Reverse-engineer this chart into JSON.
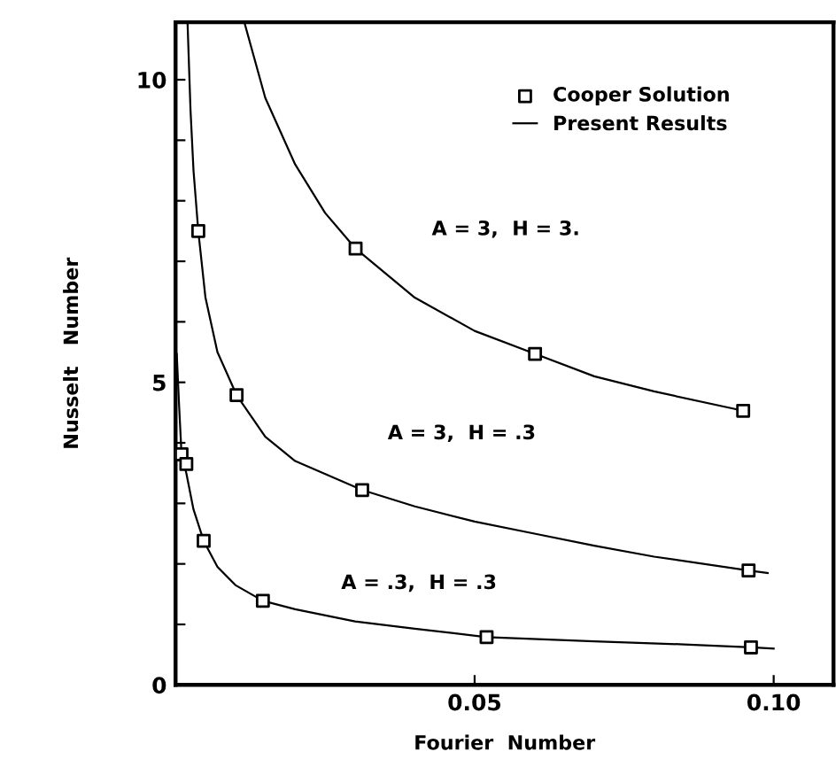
{
  "chart_data": {
    "type": "line",
    "xlabel": "Fourier  Number",
    "ylabel": "Nusselt   Number",
    "xlim": [
      0,
      0.11
    ],
    "ylim": [
      0,
      10.95
    ],
    "xticks": [
      0.05,
      {
        "value": 0.1,
        "label": "0.10"
      }
    ],
    "yticks": [
      0,
      {
        "value": 1,
        "label": null
      },
      {
        "value": 2,
        "label": null
      },
      {
        "value": 3,
        "label": null
      },
      {
        "value": 4,
        "label": null
      },
      5,
      {
        "value": 6,
        "label": null
      },
      {
        "value": 7,
        "label": null
      },
      {
        "value": 8,
        "label": null
      },
      {
        "value": 9,
        "label": null
      },
      10
    ],
    "grid": false,
    "legend": "top right",
    "series": [
      {
        "type": "scatter",
        "name": "Cooper Solution",
        "color": "#000000",
        "marker": "square",
        "x": [
          0.0301,
          0.0601,
          0.0949,
          0.0038,
          0.0102,
          0.0312,
          0.0958,
          0.001,
          0.0018,
          0.0047,
          0.0146,
          0.052,
          0.0962
        ],
        "values": [
          7.21,
          5.47,
          4.53,
          7.5,
          4.79,
          3.22,
          1.89,
          3.81,
          3.65,
          2.38,
          1.39,
          0.79,
          0.62
        ]
      },
      {
        "name": "Present Results",
        "color": "#000000",
        "x": [
          0.0115,
          0.015,
          0.02,
          0.025,
          0.0301,
          0.04,
          0.05,
          0.0601,
          0.07,
          0.08,
          0.0949
        ],
        "values": [
          10.95,
          9.7,
          8.6,
          7.8,
          7.21,
          6.4,
          5.85,
          5.47,
          5.1,
          4.85,
          4.53
        ]
      },
      {
        "color": "#000000",
        "x": [
          0.002,
          0.0025,
          0.003,
          0.0038,
          0.005,
          0.007,
          0.0102,
          0.015,
          0.02,
          0.0312,
          0.04,
          0.05,
          0.06,
          0.07,
          0.08,
          0.0958,
          0.099
        ],
        "values": [
          10.95,
          9.5,
          8.5,
          7.5,
          6.4,
          5.5,
          4.79,
          4.1,
          3.7,
          3.22,
          2.95,
          2.7,
          2.5,
          2.3,
          2.12,
          1.89,
          1.85
        ]
      },
      {
        "color": "#000000",
        "x": [
          0.0002,
          0.0006,
          0.001,
          0.0018,
          0.003,
          0.0047,
          0.007,
          0.01,
          0.0146,
          0.02,
          0.03,
          0.04,
          0.052,
          0.07,
          0.085,
          0.0962,
          0.1
        ],
        "values": [
          5.47,
          4.6,
          3.81,
          3.5,
          2.9,
          2.38,
          1.95,
          1.65,
          1.39,
          1.25,
          1.05,
          0.93,
          0.79,
          0.72,
          0.67,
          0.62,
          0.6
        ]
      }
    ],
    "annotations": [
      "A = 3,  H = 3.",
      "A = 3,  H = .3",
      "A = .3,  H = .3"
    ]
  }
}
